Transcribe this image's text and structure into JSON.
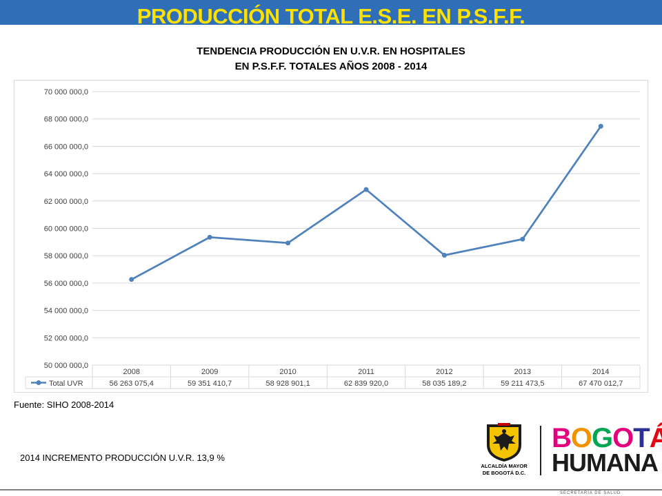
{
  "slide": {
    "title": "PRODUCCIÓN  TOTAL  E.S.E.  EN P.S.F.F.",
    "source": "Fuente: SIHO 2008-2014",
    "increment_note": "2014 INCREMENTO PRODUCCIÓN U.V.R.  13,9 %",
    "footer_text": "SECRETARÍA DE SALUD"
  },
  "logos": {
    "alcaldia_text_line1": "ALCALDÍA MAYOR",
    "alcaldia_text_line2": "DE BOGOTÁ D.C.",
    "bogota_letters": [
      "B",
      "O",
      "G",
      "O",
      "T",
      "Á"
    ],
    "humana_letters": [
      "H",
      "U",
      "M",
      "A",
      "N",
      "A"
    ],
    "colors": {
      "letters": [
        "#e4007c",
        "#f39200",
        "#00a651",
        "#e4007c",
        "#2e3192",
        "#e30613"
      ]
    }
  },
  "colors": {
    "title_bar": "#2e6fb7",
    "title_text": "#ffe100",
    "series_line": "#4f81bd",
    "grid": "#d9d9d9"
  },
  "chart_data": {
    "type": "line",
    "title_line1": "TENDENCIA PRODUCCIÓN EN U.V.R. EN HOSPITALES",
    "title_line2": "EN P.S.F.F. TOTALES AÑOS  2008 - 2014",
    "categories": [
      "2008",
      "2009",
      "2010",
      "2011",
      "2012",
      "2013",
      "2014"
    ],
    "series": [
      {
        "name": "Total UVR",
        "values": [
          56263075.4,
          59351410.7,
          58928901.1,
          62839920.0,
          58035189.2,
          59211473.5,
          67470012.7
        ],
        "labels": [
          "56 263 075,4",
          "59 351 410,7",
          "58 928 901,1",
          "62 839 920,0",
          "58 035 189,2",
          "59 211 473,5",
          "67 470 012,7"
        ]
      }
    ],
    "ylim": [
      50000000,
      70000000
    ],
    "yticks": [
      50000000,
      52000000,
      54000000,
      56000000,
      58000000,
      60000000,
      62000000,
      64000000,
      66000000,
      68000000,
      70000000
    ],
    "ytick_labels": [
      "50 000 000,0",
      "52 000 000,0",
      "54 000 000,0",
      "56 000 000,0",
      "58 000 000,0",
      "60 000 000,0",
      "62 000 000,0",
      "64 000 000,0",
      "66 000 000,0",
      "68 000 000,0",
      "70 000 000,0"
    ],
    "grid": true,
    "legend": "data-table-below",
    "xlabel": "",
    "ylabel": ""
  }
}
